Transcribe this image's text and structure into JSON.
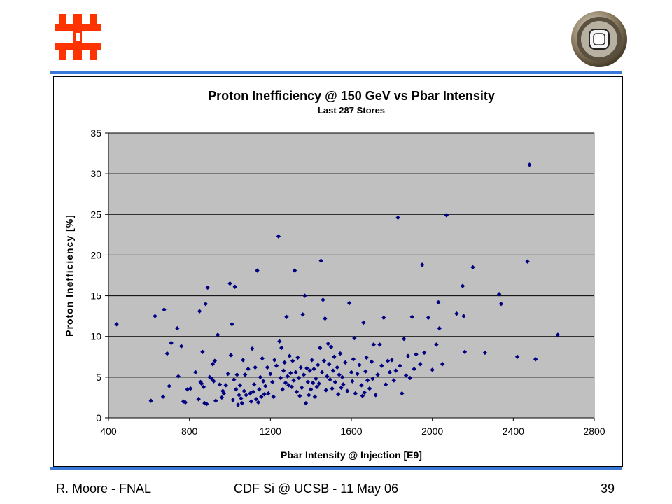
{
  "slide": {
    "footer_left": "R. Moore - FNAL",
    "footer_center": "CDF Si @ UCSB - 11 May 06",
    "footer_right": "39",
    "accent_color": "#3a78d8",
    "logo_left_icon": "fermilab-logo-icon",
    "logo_right_icon": "detector-emblem-icon",
    "logo_left_color": "#ff3300"
  },
  "chart_data": {
    "type": "scatter",
    "title": "Proton Inefficiency @ 150 GeV vs Pbar Intensity",
    "subtitle": "Last 287 Stores",
    "xlabel": "Pbar Intensity @ Injection  [E9]",
    "ylabel": "Proton Inefficiency  [%]",
    "xlim": [
      400,
      2800
    ],
    "ylim": [
      0,
      35
    ],
    "xticks": [
      400,
      800,
      1200,
      1600,
      2000,
      2400,
      2800
    ],
    "yticks": [
      0,
      5,
      10,
      15,
      20,
      25,
      30,
      35
    ],
    "grid": "horizontal",
    "plot_background": "#c0c0c0",
    "marker_color": "#000080",
    "marker": "diamond",
    "points": [
      [
        440,
        11.5
      ],
      [
        610,
        2.1
      ],
      [
        630,
        12.5
      ],
      [
        670,
        2.6
      ],
      [
        675,
        13.3
      ],
      [
        690,
        7.9
      ],
      [
        700,
        3.9
      ],
      [
        710,
        9.2
      ],
      [
        740,
        11.0
      ],
      [
        745,
        5.1
      ],
      [
        760,
        8.8
      ],
      [
        770,
        2.0
      ],
      [
        780,
        1.9
      ],
      [
        790,
        3.5
      ],
      [
        805,
        3.6
      ],
      [
        830,
        5.6
      ],
      [
        845,
        2.3
      ],
      [
        850,
        13.1
      ],
      [
        855,
        4.4
      ],
      [
        860,
        4.2
      ],
      [
        865,
        8.1
      ],
      [
        870,
        3.8
      ],
      [
        875,
        1.8
      ],
      [
        880,
        14.0
      ],
      [
        885,
        1.7
      ],
      [
        890,
        16.0
      ],
      [
        900,
        5.0
      ],
      [
        910,
        4.8
      ],
      [
        915,
        6.6
      ],
      [
        920,
        4.5
      ],
      [
        925,
        7.0
      ],
      [
        930,
        2.1
      ],
      [
        940,
        10.2
      ],
      [
        950,
        4.1
      ],
      [
        960,
        2.5
      ],
      [
        965,
        3.3
      ],
      [
        970,
        3.0
      ],
      [
        980,
        4.0
      ],
      [
        990,
        5.4
      ],
      [
        1000,
        16.5
      ],
      [
        1005,
        7.7
      ],
      [
        1010,
        11.5
      ],
      [
        1015,
        2.2
      ],
      [
        1020,
        4.7
      ],
      [
        1025,
        16.1
      ],
      [
        1030,
        3.5
      ],
      [
        1035,
        5.3
      ],
      [
        1040,
        1.6
      ],
      [
        1045,
        2.8
      ],
      [
        1050,
        4.0
      ],
      [
        1055,
        2.4
      ],
      [
        1060,
        1.8
      ],
      [
        1065,
        7.1
      ],
      [
        1070,
        3.3
      ],
      [
        1075,
        5.3
      ],
      [
        1080,
        2.8
      ],
      [
        1090,
        6.0
      ],
      [
        1100,
        3.0
      ],
      [
        1105,
        2.0
      ],
      [
        1110,
        8.5
      ],
      [
        1115,
        3.2
      ],
      [
        1120,
        4.1
      ],
      [
        1125,
        6.2
      ],
      [
        1130,
        2.3
      ],
      [
        1135,
        18.1
      ],
      [
        1140,
        1.9
      ],
      [
        1145,
        3.5
      ],
      [
        1150,
        5.0
      ],
      [
        1155,
        2.6
      ],
      [
        1160,
        7.3
      ],
      [
        1165,
        4.5
      ],
      [
        1170,
        2.9
      ],
      [
        1175,
        3.9
      ],
      [
        1185,
        6.2
      ],
      [
        1190,
        3.0
      ],
      [
        1200,
        5.4
      ],
      [
        1210,
        4.4
      ],
      [
        1215,
        2.6
      ],
      [
        1220,
        7.1
      ],
      [
        1230,
        6.4
      ],
      [
        1240,
        22.3
      ],
      [
        1245,
        9.4
      ],
      [
        1250,
        4.9
      ],
      [
        1255,
        8.6
      ],
      [
        1260,
        3.5
      ],
      [
        1265,
        5.8
      ],
      [
        1270,
        6.8
      ],
      [
        1275,
        4.3
      ],
      [
        1280,
        12.4
      ],
      [
        1285,
        5.1
      ],
      [
        1290,
        4.0
      ],
      [
        1295,
        7.6
      ],
      [
        1300,
        5.5
      ],
      [
        1305,
        3.8
      ],
      [
        1310,
        7.0
      ],
      [
        1315,
        4.6
      ],
      [
        1320,
        18.1
      ],
      [
        1325,
        5.6
      ],
      [
        1330,
        3.2
      ],
      [
        1335,
        7.4
      ],
      [
        1340,
        4.9
      ],
      [
        1345,
        2.7
      ],
      [
        1350,
        6.2
      ],
      [
        1355,
        3.7
      ],
      [
        1360,
        12.7
      ],
      [
        1365,
        5.3
      ],
      [
        1370,
        15.0
      ],
      [
        1375,
        1.8
      ],
      [
        1380,
        6.1
      ],
      [
        1385,
        4.4
      ],
      [
        1390,
        2.8
      ],
      [
        1395,
        5.8
      ],
      [
        1400,
        3.5
      ],
      [
        1405,
        7.1
      ],
      [
        1410,
        4.3
      ],
      [
        1415,
        6.0
      ],
      [
        1420,
        2.6
      ],
      [
        1425,
        4.8
      ],
      [
        1430,
        3.8
      ],
      [
        1435,
        6.5
      ],
      [
        1440,
        4.2
      ],
      [
        1445,
        8.6
      ],
      [
        1450,
        19.3
      ],
      [
        1455,
        5.6
      ],
      [
        1460,
        14.5
      ],
      [
        1465,
        7.0
      ],
      [
        1470,
        12.2
      ],
      [
        1475,
        3.4
      ],
      [
        1480,
        5.1
      ],
      [
        1485,
        9.1
      ],
      [
        1490,
        6.6
      ],
      [
        1495,
        4.7
      ],
      [
        1500,
        8.7
      ],
      [
        1505,
        3.6
      ],
      [
        1510,
        5.8
      ],
      [
        1515,
        7.5
      ],
      [
        1520,
        4.4
      ],
      [
        1530,
        6.2
      ],
      [
        1535,
        2.9
      ],
      [
        1540,
        5.3
      ],
      [
        1545,
        7.9
      ],
      [
        1550,
        3.7
      ],
      [
        1555,
        5.0
      ],
      [
        1560,
        4.1
      ],
      [
        1570,
        6.8
      ],
      [
        1580,
        3.3
      ],
      [
        1590,
        14.1
      ],
      [
        1600,
        5.6
      ],
      [
        1605,
        4.5
      ],
      [
        1610,
        7.2
      ],
      [
        1615,
        9.8
      ],
      [
        1620,
        3.0
      ],
      [
        1630,
        5.4
      ],
      [
        1640,
        6.5
      ],
      [
        1650,
        4.0
      ],
      [
        1655,
        2.7
      ],
      [
        1660,
        11.7
      ],
      [
        1665,
        3.1
      ],
      [
        1670,
        5.7
      ],
      [
        1675,
        7.4
      ],
      [
        1680,
        4.6
      ],
      [
        1690,
        3.6
      ],
      [
        1700,
        6.9
      ],
      [
        1705,
        4.8
      ],
      [
        1710,
        9.0
      ],
      [
        1720,
        2.8
      ],
      [
        1730,
        5.3
      ],
      [
        1740,
        9.0
      ],
      [
        1750,
        6.4
      ],
      [
        1760,
        12.3
      ],
      [
        1770,
        4.1
      ],
      [
        1780,
        7.0
      ],
      [
        1790,
        5.6
      ],
      [
        1800,
        7.1
      ],
      [
        1810,
        4.6
      ],
      [
        1820,
        5.8
      ],
      [
        1830,
        24.6
      ],
      [
        1840,
        6.4
      ],
      [
        1850,
        3.0
      ],
      [
        1860,
        9.7
      ],
      [
        1870,
        5.2
      ],
      [
        1880,
        7.6
      ],
      [
        1890,
        4.9
      ],
      [
        1900,
        12.4
      ],
      [
        1910,
        6.0
      ],
      [
        1920,
        7.8
      ],
      [
        1940,
        6.6
      ],
      [
        1950,
        18.8
      ],
      [
        1960,
        8.0
      ],
      [
        1980,
        12.3
      ],
      [
        2000,
        5.9
      ],
      [
        2020,
        9.0
      ],
      [
        2030,
        14.2
      ],
      [
        2035,
        11.0
      ],
      [
        2050,
        6.6
      ],
      [
        2070,
        24.9
      ],
      [
        2120,
        12.8
      ],
      [
        2150,
        16.2
      ],
      [
        2155,
        12.5
      ],
      [
        2160,
        8.1
      ],
      [
        2200,
        18.5
      ],
      [
        2260,
        8.0
      ],
      [
        2330,
        15.2
      ],
      [
        2340,
        14.0
      ],
      [
        2420,
        7.5
      ],
      [
        2470,
        19.2
      ],
      [
        2480,
        31.1
      ],
      [
        2510,
        7.2
      ],
      [
        2620,
        10.2
      ]
    ]
  }
}
